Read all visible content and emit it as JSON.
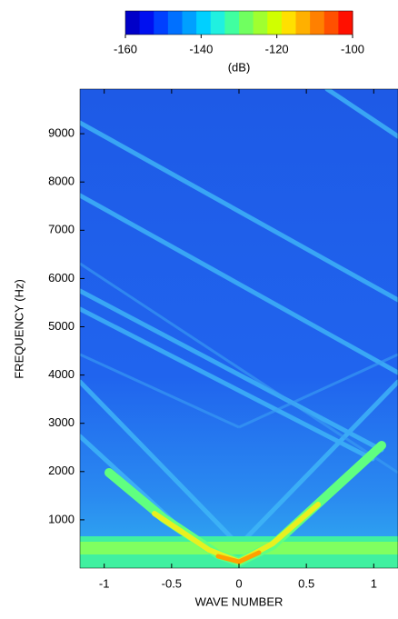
{
  "chart_data": {
    "type": "heatmap",
    "x_label": "WAVE NUMBER",
    "y_label": "FREQUENCY (Hz)",
    "xlim": [
      -1.18,
      1.18
    ],
    "xticks": [
      -1,
      -0.5,
      0,
      0.5,
      1
    ],
    "ylim": [
      0,
      9925
    ],
    "yticks": [
      1000,
      2000,
      3000,
      4000,
      5000,
      6000,
      7000,
      8000,
      9000
    ],
    "colorbar": {
      "label": "(dB)",
      "lim": [
        -160,
        -100
      ],
      "ticks": [
        -160,
        -140,
        -120,
        -100
      ],
      "colormap": [
        "#0000c8",
        "#0010f0",
        "#0040ff",
        "#0070ff",
        "#00a0ff",
        "#00d0ff",
        "#20f0e0",
        "#40ffa0",
        "#70ff60",
        "#a0ff30",
        "#d0ff00",
        "#ffe000",
        "#ffb000",
        "#ff8000",
        "#ff5000",
        "#ff1000"
      ]
    }
  }
}
